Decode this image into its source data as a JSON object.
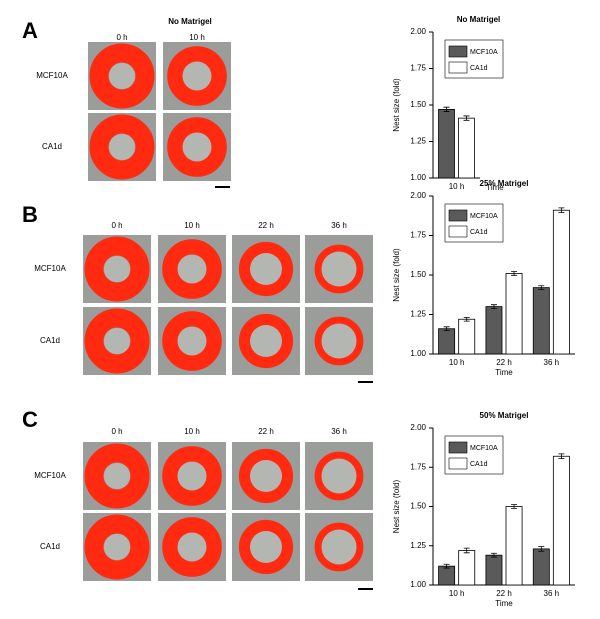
{
  "figure": {
    "panels": [
      {
        "letter": "A",
        "title": "No Matrigel",
        "columns": [
          "0 h",
          "10 h"
        ],
        "rows": [
          "MCF10A",
          "CA1d"
        ]
      },
      {
        "letter": "B",
        "columns": [
          "0 h",
          "10 h",
          "22 h",
          "36 h"
        ],
        "rows": [
          "MCF10A",
          "CA1d"
        ]
      },
      {
        "letter": "C",
        "columns": [
          "0 h",
          "10 h",
          "22 h",
          "36 h"
        ],
        "rows": [
          "MCF10A",
          "CA1d"
        ]
      }
    ]
  },
  "chart_data": [
    {
      "type": "bar",
      "title": "No Matrigel",
      "xlabel": "Time",
      "ylabel": "Nest size (fold)",
      "categories": [
        "10 h"
      ],
      "series": [
        {
          "name": "MCF10A",
          "color": "#5a5a5a",
          "values": [
            1.47
          ],
          "errors": [
            0.015
          ]
        },
        {
          "name": "CA1d",
          "color": "#ffffff",
          "values": [
            1.41
          ],
          "errors": [
            0.015
          ]
        }
      ],
      "ylim": [
        1,
        2
      ],
      "yticks": [
        {
          "value": 1,
          "label": "1.00"
        },
        {
          "value": 1.25,
          "label": "1.25"
        },
        {
          "value": 1.5,
          "label": "1.50"
        },
        {
          "value": 1.75,
          "label": "1.75"
        },
        {
          "value": 2,
          "label": "2.00"
        }
      ],
      "legend": "upper left"
    },
    {
      "type": "bar",
      "title": "25% Matrigel",
      "xlabel": "Time",
      "ylabel": "Nest size (fold)",
      "categories": [
        "10 h",
        "22 h",
        "36 h"
      ],
      "series": [
        {
          "name": "MCF10A",
          "color": "#5a5a5a",
          "values": [
            1.16,
            1.3,
            1.42
          ],
          "errors": [
            0.012,
            0.012,
            0.012
          ]
        },
        {
          "name": "CA1d",
          "color": "#ffffff",
          "values": [
            1.22,
            1.51,
            1.91
          ],
          "errors": [
            0.012,
            0.012,
            0.015
          ]
        }
      ],
      "ylim": [
        1,
        2
      ],
      "yticks": [
        {
          "value": 1,
          "label": "1.00"
        },
        {
          "value": 1.25,
          "label": "1.25"
        },
        {
          "value": 1.5,
          "label": "1.50"
        },
        {
          "value": 1.75,
          "label": "1.75"
        },
        {
          "value": 2,
          "label": "2.00"
        }
      ],
      "legend": "upper left"
    },
    {
      "type": "bar",
      "title": "50% Matrigel",
      "xlabel": "Time",
      "ylabel": "Nest size (fold)",
      "categories": [
        "10 h",
        "22 h",
        "36 h"
      ],
      "series": [
        {
          "name": "MCF10A",
          "color": "#5a5a5a",
          "values": [
            1.12,
            1.19,
            1.23
          ],
          "errors": [
            0.012,
            0.012,
            0.015
          ]
        },
        {
          "name": "CA1d",
          "color": "#ffffff",
          "values": [
            1.22,
            1.5,
            1.82
          ],
          "errors": [
            0.015,
            0.012,
            0.015
          ]
        }
      ],
      "ylim": [
        1,
        2
      ],
      "yticks": [
        {
          "value": 1,
          "label": "1.00"
        },
        {
          "value": 1.25,
          "label": "1.25"
        },
        {
          "value": 1.5,
          "label": "1.50"
        },
        {
          "value": 1.75,
          "label": "1.75"
        },
        {
          "value": 2,
          "label": "2.00"
        }
      ],
      "legend": "upper left"
    }
  ]
}
